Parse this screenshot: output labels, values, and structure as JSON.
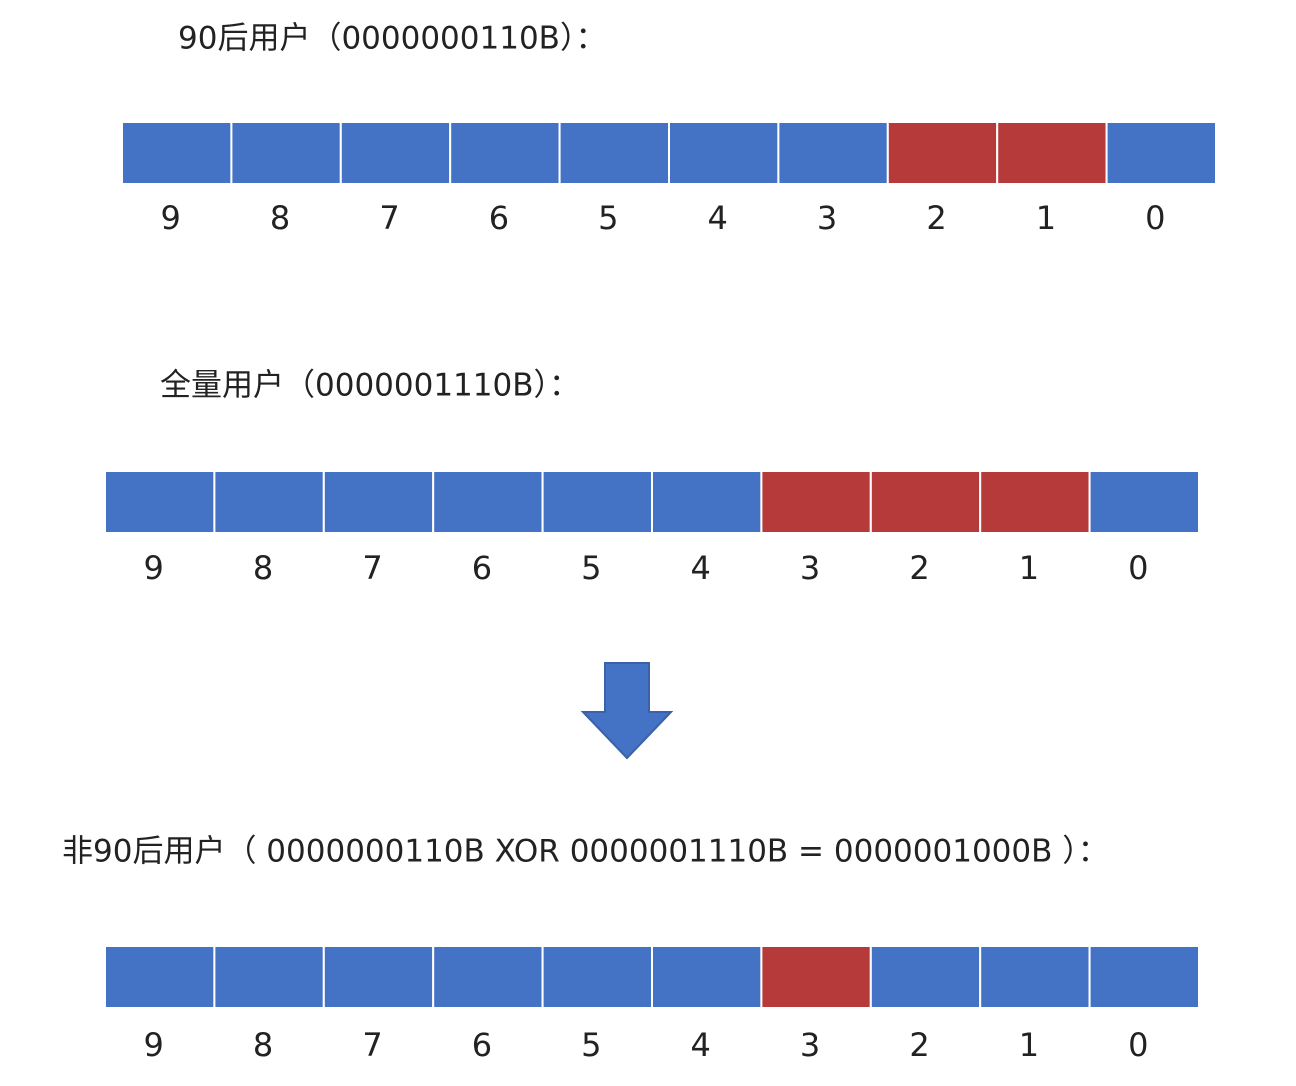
{
  "sections": [
    {
      "title": "90后用户（0000000110B）：",
      "bits": [
        0,
        0,
        0,
        0,
        0,
        0,
        0,
        1,
        1,
        0
      ],
      "labels": [
        "9",
        "8",
        "7",
        "6",
        "5",
        "4",
        "3",
        "2",
        "1",
        "0"
      ]
    },
    {
      "title": "全量用户（0000001110B）：",
      "bits": [
        0,
        0,
        0,
        0,
        0,
        0,
        1,
        1,
        1,
        0
      ],
      "labels": [
        "9",
        "8",
        "7",
        "6",
        "5",
        "4",
        "3",
        "2",
        "1",
        "0"
      ]
    },
    {
      "title": "非90后用户（ 0000000110B  XOR  0000001110B = 0000001000B ）：",
      "bits": [
        0,
        0,
        0,
        0,
        0,
        0,
        1,
        0,
        0,
        0
      ],
      "labels": [
        "9",
        "8",
        "7",
        "6",
        "5",
        "4",
        "3",
        "2",
        "1",
        "0"
      ]
    }
  ],
  "colors": {
    "off": "#4472c4",
    "on": "#b73a3a"
  }
}
